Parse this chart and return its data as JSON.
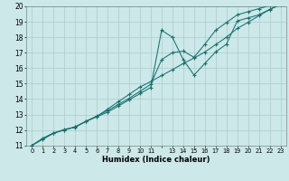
{
  "xlabel": "Humidex (Indice chaleur)",
  "xlim": [
    -0.5,
    23.5
  ],
  "ylim": [
    11,
    20
  ],
  "yticks": [
    11,
    12,
    13,
    14,
    15,
    16,
    17,
    18,
    19,
    20
  ],
  "background_color": "#cce8e8",
  "grid_color": "#aacccc",
  "line_color": "#1a7070",
  "line1_x": [
    0,
    1,
    2,
    3,
    4,
    5,
    6,
    7,
    8,
    9,
    10,
    11,
    12,
    13,
    14,
    15,
    16,
    17,
    18,
    19,
    20,
    21,
    22,
    23
  ],
  "line1_y": [
    11.0,
    11.45,
    11.8,
    12.0,
    12.2,
    12.55,
    12.85,
    13.15,
    13.55,
    13.95,
    14.35,
    14.75,
    18.45,
    18.0,
    16.55,
    15.55,
    16.3,
    17.05,
    17.55,
    19.05,
    19.25,
    19.45,
    19.8,
    20.1
  ],
  "line2_x": [
    0,
    1,
    2,
    3,
    4,
    5,
    6,
    7,
    8,
    9,
    10,
    11,
    12,
    13,
    14,
    15,
    16,
    17,
    18,
    19,
    20,
    21,
    22,
    23
  ],
  "line2_y": [
    11.0,
    11.45,
    11.8,
    12.0,
    12.2,
    12.55,
    12.9,
    13.25,
    13.65,
    14.05,
    14.5,
    14.95,
    16.55,
    17.0,
    17.1,
    16.7,
    17.55,
    18.45,
    18.95,
    19.45,
    19.65,
    19.85,
    20.05,
    20.15
  ],
  "line3_x": [
    0,
    1,
    2,
    3,
    4,
    5,
    6,
    7,
    8,
    9,
    10,
    11,
    12,
    13,
    14,
    15,
    16,
    17,
    18,
    19,
    20,
    21,
    22,
    23
  ],
  "line3_y": [
    11.0,
    11.39,
    11.78,
    12.04,
    12.17,
    12.57,
    12.87,
    13.35,
    13.83,
    14.3,
    14.78,
    15.13,
    15.52,
    15.9,
    16.3,
    16.65,
    17.04,
    17.52,
    18.0,
    18.57,
    18.96,
    19.39,
    19.78,
    20.17
  ]
}
